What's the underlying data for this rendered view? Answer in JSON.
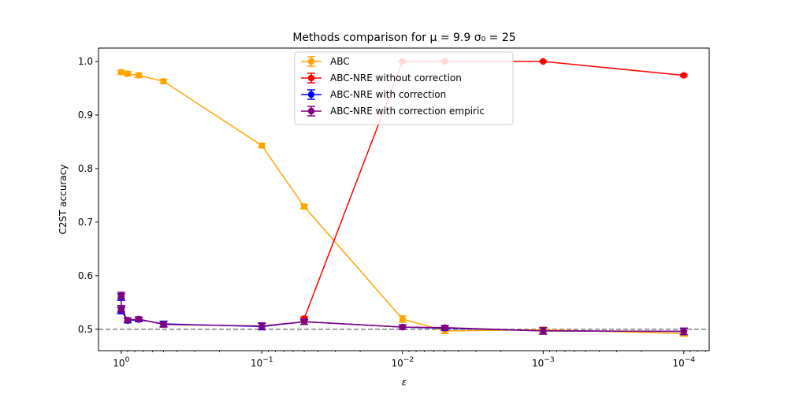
{
  "chart_data": {
    "type": "line",
    "title": "Methods comparison for μ =  9.9 σ₀ =  25",
    "xlabel": "ε",
    "ylabel": "C2ST accuracy",
    "x_scale": "log",
    "x_reversed": true,
    "xlim": [
      1.45,
      6.6e-05
    ],
    "ylim": [
      0.46,
      1.025
    ],
    "x_ticks": [
      {
        "value": 1,
        "base": "10",
        "exp": "0"
      },
      {
        "value": 0.1,
        "base": "10",
        "exp": "−1"
      },
      {
        "value": 0.01,
        "base": "10",
        "exp": "−2"
      },
      {
        "value": 0.001,
        "base": "10",
        "exp": "−3"
      },
      {
        "value": 0.0001,
        "base": "10",
        "exp": "−4"
      }
    ],
    "y_ticks": [
      "0.5",
      "0.6",
      "0.7",
      "0.8",
      "0.9",
      "1.0"
    ],
    "y_tick_values": [
      0.5,
      0.6,
      0.7,
      0.8,
      0.9,
      1.0
    ],
    "reference_line": {
      "y": 0.5,
      "style": "dashed",
      "color": "#808080"
    },
    "grid": false,
    "legend_position": "top-center",
    "series": [
      {
        "name": "ABC",
        "color": "#FFA500",
        "x": [
          1.0,
          0.9,
          0.75,
          0.5,
          0.1,
          0.05,
          0.01,
          0.005,
          0.001,
          0.0001
        ],
        "y": [
          0.98,
          0.977,
          0.974,
          0.963,
          0.843,
          0.729,
          0.519,
          0.497,
          0.499,
          0.492
        ],
        "err": [
          0.004,
          0.004,
          0.004,
          0.004,
          0.004,
          0.004,
          0.006,
          0.005,
          0.005,
          0.005
        ]
      },
      {
        "name": "ABC-NRE without correction",
        "color": "#FF0000",
        "x": [
          0.05,
          0.01,
          0.005,
          0.001,
          0.0001
        ],
        "y": [
          0.52,
          1.0,
          1.0,
          1.0,
          0.974
        ],
        "err": [
          0.003,
          0.001,
          0.001,
          0.001,
          0.002
        ]
      },
      {
        "name": "ABC-NRE with correction",
        "color": "#0000FF",
        "x": [
          1.0,
          1.0,
          1.0,
          0.9,
          0.75,
          0.5,
          0.1,
          0.05,
          0.01,
          0.005,
          0.001,
          0.0001
        ],
        "y": [
          0.535,
          0.56,
          0.535,
          0.516,
          0.518,
          0.51,
          0.505,
          0.514,
          0.504,
          0.502,
          0.497,
          0.496
        ],
        "err": [
          0.006,
          0.006,
          0.006,
          0.004,
          0.004,
          0.005,
          0.006,
          0.005,
          0.004,
          0.004,
          0.006,
          0.006
        ]
      },
      {
        "name": "ABC-NRE with correction empiric",
        "color": "#800080",
        "x": [
          1.0,
          1.0,
          1.0,
          0.9,
          0.75,
          0.5,
          0.1,
          0.05,
          0.01,
          0.005,
          0.001,
          0.0001
        ],
        "y": [
          0.538,
          0.563,
          0.538,
          0.517,
          0.519,
          0.509,
          0.506,
          0.514,
          0.504,
          0.503,
          0.497,
          0.496
        ],
        "err": [
          0.006,
          0.006,
          0.006,
          0.004,
          0.004,
          0.005,
          0.006,
          0.005,
          0.004,
          0.004,
          0.006,
          0.006
        ]
      }
    ]
  }
}
